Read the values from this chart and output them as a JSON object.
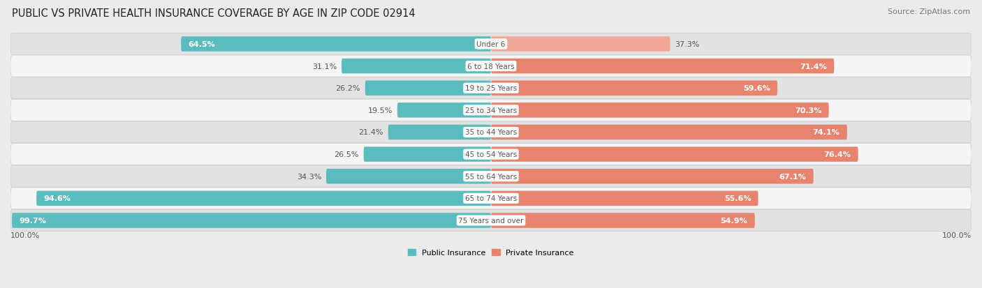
{
  "title": "PUBLIC VS PRIVATE HEALTH INSURANCE COVERAGE BY AGE IN ZIP CODE 02914",
  "source": "Source: ZipAtlas.com",
  "categories": [
    "Under 6",
    "6 to 18 Years",
    "19 to 25 Years",
    "25 to 34 Years",
    "35 to 44 Years",
    "45 to 54 Years",
    "55 to 64 Years",
    "65 to 74 Years",
    "75 Years and over"
  ],
  "public_values": [
    64.5,
    31.1,
    26.2,
    19.5,
    21.4,
    26.5,
    34.3,
    94.6,
    99.7
  ],
  "private_values": [
    37.3,
    71.4,
    59.6,
    70.3,
    74.1,
    76.4,
    67.1,
    55.6,
    54.9
  ],
  "public_color": "#5bbcbf",
  "private_color": "#e8836e",
  "background_color": "#ebebeb",
  "row_odd_color": "#f5f5f5",
  "row_even_color": "#e2e2e2",
  "label_color_dark": "#555555",
  "label_color_light": "#ffffff",
  "axis_label_left": "100.0%",
  "axis_label_right": "100.0%",
  "legend_public": "Public Insurance",
  "legend_private": "Private Insurance",
  "title_fontsize": 10.5,
  "source_fontsize": 8,
  "bar_label_fontsize": 8,
  "category_fontsize": 7.5,
  "axis_fontsize": 8,
  "private_light_color": "#f2a898"
}
